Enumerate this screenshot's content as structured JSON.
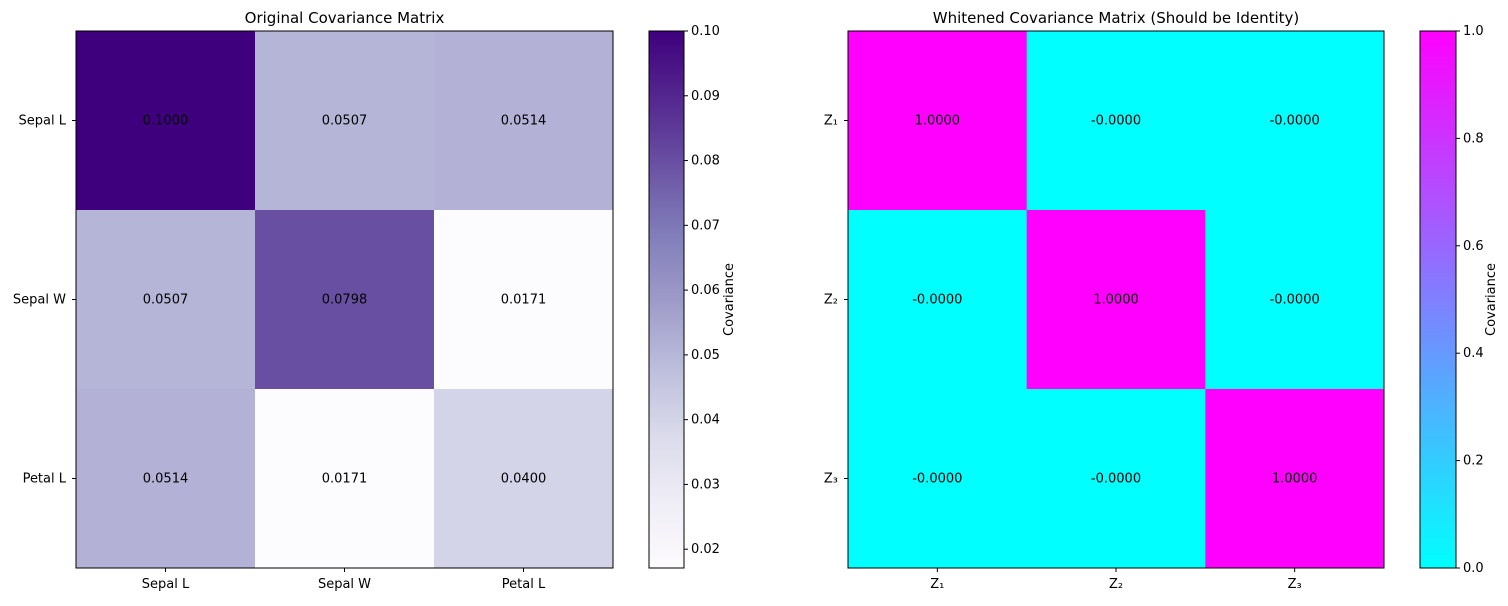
{
  "chart_data": [
    {
      "type": "heatmap",
      "title": "Original Covariance Matrix",
      "x_categories": [
        "Sepal L",
        "Sepal W",
        "Petal L"
      ],
      "y_categories": [
        "Sepal L",
        "Sepal W",
        "Petal L"
      ],
      "values": [
        [
          0.1,
          0.0507,
          0.0514
        ],
        [
          0.0507,
          0.0798,
          0.0171
        ],
        [
          0.0514,
          0.0171,
          0.04
        ]
      ],
      "value_labels": [
        [
          "0.1000",
          "0.0507",
          "0.0514"
        ],
        [
          "0.0507",
          "0.0798",
          "0.0171"
        ],
        [
          "0.0514",
          "0.0171",
          "0.0400"
        ]
      ],
      "colormap": "Purples",
      "colorbar": {
        "label": "Covariance",
        "vmin": 0.0171,
        "vmax": 0.1,
        "ticks": [
          0.02,
          0.03,
          0.04,
          0.05,
          0.06,
          0.07,
          0.08,
          0.09,
          0.1
        ],
        "tick_labels": [
          "0.02",
          "0.03",
          "0.04",
          "0.05",
          "0.06",
          "0.07",
          "0.08",
          "0.09",
          "0.10"
        ]
      }
    },
    {
      "type": "heatmap",
      "title": "Whitened Covariance Matrix (Should be Identity)",
      "x_categories": [
        "Z₁",
        "Z₂",
        "Z₃"
      ],
      "y_categories": [
        "Z₁",
        "Z₂",
        "Z₃"
      ],
      "values": [
        [
          1.0,
          0.0,
          0.0
        ],
        [
          0.0,
          1.0,
          0.0
        ],
        [
          0.0,
          0.0,
          1.0
        ]
      ],
      "value_labels": [
        [
          "1.0000",
          "-0.0000",
          "-0.0000"
        ],
        [
          "-0.0000",
          "1.0000",
          "-0.0000"
        ],
        [
          "-0.0000",
          "-0.0000",
          "1.0000"
        ]
      ],
      "colormap": "cool",
      "colorbar": {
        "label": "Covariance",
        "vmin": 0.0,
        "vmax": 1.0,
        "ticks": [
          0.0,
          0.2,
          0.4,
          0.6,
          0.8,
          1.0
        ],
        "tick_labels": [
          "0.0",
          "0.2",
          "0.4",
          "0.6",
          "0.8",
          "1.0"
        ]
      }
    }
  ]
}
